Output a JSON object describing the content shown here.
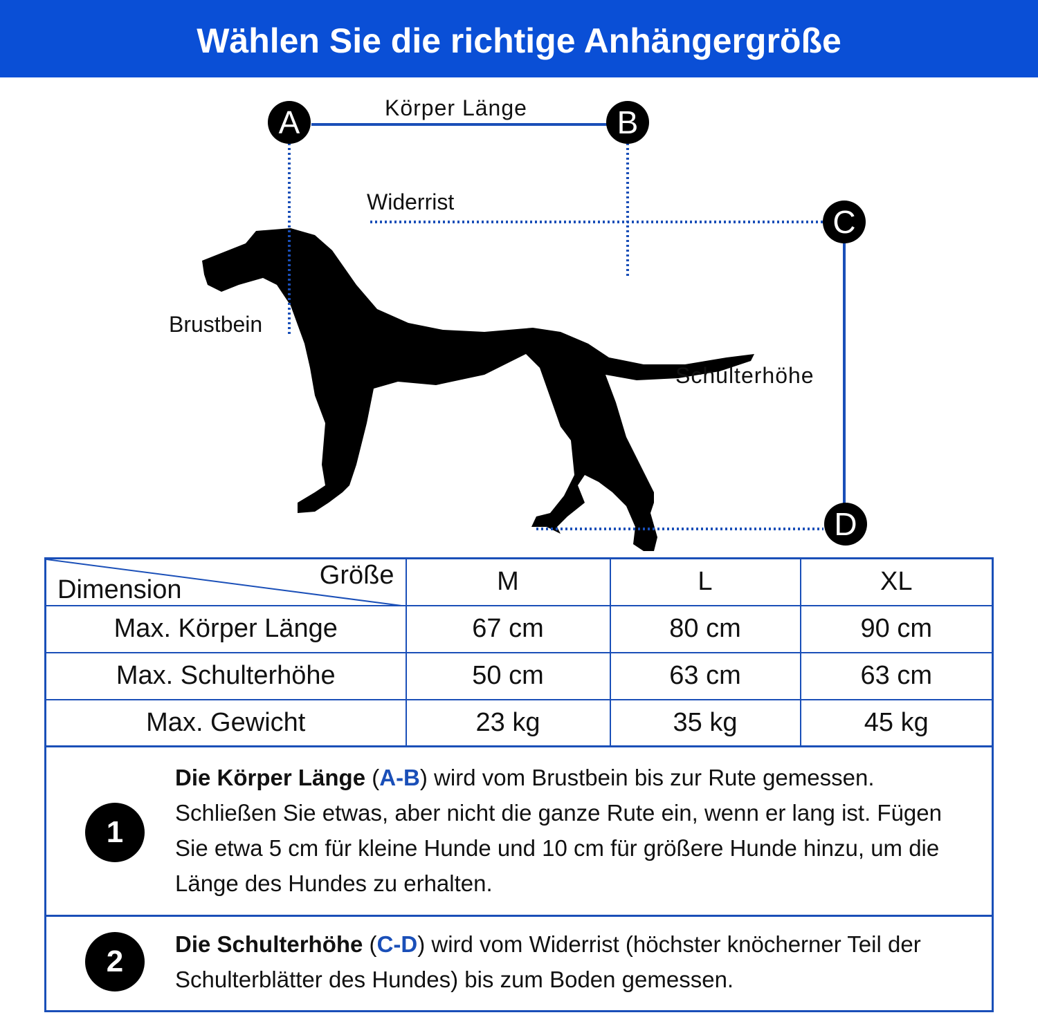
{
  "header": {
    "title": "Wählen Sie die richtige Anhängergröße"
  },
  "diagram": {
    "points": [
      "A",
      "B",
      "C",
      "D"
    ],
    "labels": {
      "body_length": "Körper Länge",
      "withers": "Widerrist",
      "sternum": "Brustbein",
      "shoulder_height": "Schulterhöhe"
    },
    "line_color": "#1a4fb8"
  },
  "table": {
    "corner_size": "Größe",
    "corner_dimension": "Dimension",
    "sizes": [
      "M",
      "L",
      "XL"
    ],
    "rows": [
      {
        "label": "Max. Körper Länge",
        "values": [
          "67 cm",
          "80 cm",
          "90 cm"
        ]
      },
      {
        "label": "Max. Schulterhöhe",
        "values": [
          "50 cm",
          "63 cm",
          "63 cm"
        ]
      },
      {
        "label": "Max. Gewicht",
        "values": [
          "23 kg",
          "35 kg",
          "45 kg"
        ]
      }
    ]
  },
  "notes": [
    {
      "number": "1",
      "bold": "Die Körper Länge",
      "open": " (",
      "code": "A-B",
      "close": ")",
      "rest": " wird vom Brustbein bis zur Rute gemessen. Schließen Sie etwas, aber nicht die ganze Rute ein, wenn er lang ist. Fügen Sie etwa 5 cm für kleine Hunde und 10 cm für größere Hunde hinzu, um die Länge des Hundes zu erhalten."
    },
    {
      "number": "2",
      "bold": "Die Schulterhöhe",
      "open": " (",
      "code": "C-D",
      "close": ")",
      "rest": " wird vom Widerrist (höchster knöcherner Teil der Schulterblätter des Hundes) bis zum Boden gemessen."
    }
  ]
}
